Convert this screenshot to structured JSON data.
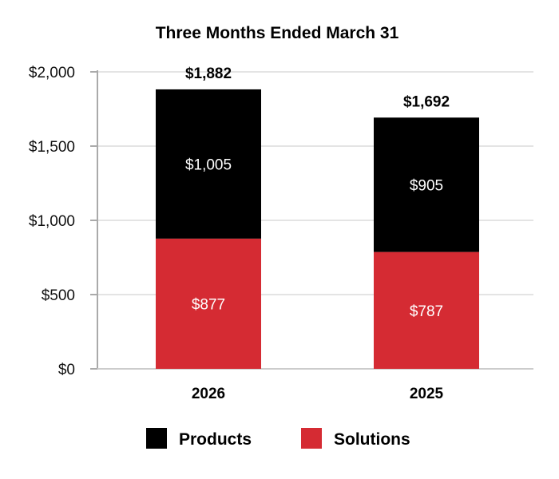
{
  "chart_data": {
    "type": "bar",
    "stacked": true,
    "title": "Three Months Ended March 31",
    "categories": [
      "2026",
      "2025"
    ],
    "series": [
      {
        "name": "Solutions",
        "values": [
          877,
          787
        ],
        "color": "#d52b33"
      },
      {
        "name": "Products",
        "values": [
          1005,
          905
        ],
        "color": "#000000"
      }
    ],
    "totals": [
      1882,
      1692
    ],
    "total_labels": [
      "$1,882",
      "$1,692"
    ],
    "segment_labels": {
      "Solutions": [
        "$877",
        "$787"
      ],
      "Products": [
        "$1,005",
        "$905"
      ]
    },
    "ylim": [
      0,
      2000
    ],
    "yticks": [
      0,
      500,
      1000,
      1500,
      2000
    ],
    "ytick_labels": [
      "$0",
      "$500",
      "$1,000",
      "$1,500",
      "$2,000"
    ],
    "grid": true,
    "legend": {
      "position": "bottom",
      "entries": [
        {
          "name": "Products",
          "color": "#000000"
        },
        {
          "name": "Solutions",
          "color": "#d52b33"
        }
      ]
    }
  }
}
